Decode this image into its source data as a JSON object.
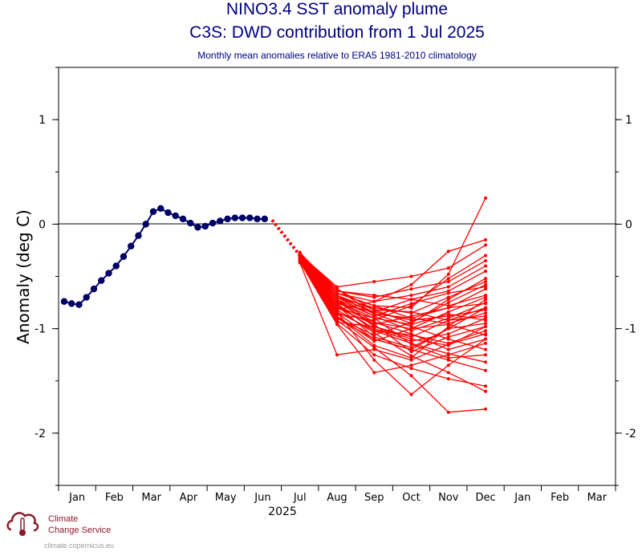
{
  "chart_data": {
    "type": "line",
    "title": "NINO3.4 SST anomaly plume",
    "subtitle": "C3S: DWD contribution from 1 Jul 2025",
    "caption": "Monthly mean anomalies relative to ERA5 1981-2010 climatology",
    "ylabel": "Anomaly (deg C)",
    "xlabel": "2025",
    "ylim": [
      -2.5,
      1.5
    ],
    "yticks": [
      1,
      0,
      -1,
      -2
    ],
    "ytick_labels": [
      "1",
      "0",
      "-1",
      "-2"
    ],
    "month_labels": [
      "Jan",
      "Feb",
      "Mar",
      "Apr",
      "May",
      "Jun",
      "Jul",
      "Aug",
      "Sep",
      "Oct",
      "Nov",
      "Dec",
      "Jan",
      "Feb",
      "Mar"
    ],
    "x_unit": "months since 1 Jan 2025",
    "xlim": [
      0,
      15
    ],
    "observed": {
      "color": "#000066",
      "x": [
        0.15,
        0.35,
        0.55,
        0.75,
        0.95,
        1.15,
        1.35,
        1.55,
        1.75,
        1.95,
        2.15,
        2.35,
        2.55,
        2.75,
        2.95,
        3.15,
        3.35,
        3.55,
        3.75,
        3.95,
        4.15,
        4.35,
        4.55,
        4.75,
        4.95,
        5.15,
        5.35,
        5.55
      ],
      "y": [
        -0.74,
        -0.76,
        -0.77,
        -0.7,
        -0.62,
        -0.54,
        -0.47,
        -0.4,
        -0.31,
        -0.21,
        -0.11,
        0.0,
        0.12,
        0.15,
        0.11,
        0.08,
        0.05,
        0.01,
        -0.03,
        -0.02,
        0.01,
        0.03,
        0.05,
        0.06,
        0.06,
        0.06,
        0.05,
        0.05
      ]
    },
    "transition": {
      "color": "#ff0000",
      "x": [
        5.75,
        6.5
      ],
      "y": [
        0.04,
        -0.3
      ]
    },
    "forecast": {
      "color": "#ff0000",
      "x": [
        6.5,
        7.5,
        8.5,
        9.5,
        10.5,
        11.5
      ],
      "members": [
        [
          -0.28,
          -0.62,
          -0.82,
          -0.95,
          -0.72,
          -0.52
        ],
        [
          -0.3,
          -0.7,
          -0.88,
          -1.02,
          -0.9,
          -0.75
        ],
        [
          -0.32,
          -0.78,
          -1.0,
          -1.12,
          -1.05,
          -0.9
        ],
        [
          -0.27,
          -0.66,
          -0.78,
          -0.8,
          -0.48,
          0.25
        ],
        [
          -0.34,
          -0.85,
          -1.1,
          -1.2,
          -1.3,
          -1.4
        ],
        [
          -0.36,
          -0.95,
          -1.25,
          -1.38,
          -1.48,
          -1.55
        ],
        [
          -0.31,
          -0.72,
          -0.94,
          -1.05,
          -1.2,
          -1.1
        ],
        [
          -0.29,
          -0.64,
          -0.7,
          -0.62,
          -0.55,
          -0.35
        ],
        [
          -0.33,
          -0.8,
          -0.96,
          -0.88,
          -0.8,
          -0.62
        ],
        [
          -0.35,
          -0.92,
          -1.18,
          -1.45,
          -1.8,
          -1.77
        ],
        [
          -0.3,
          -0.74,
          -0.9,
          -1.15,
          -1.28,
          -1.25
        ],
        [
          -0.28,
          -0.68,
          -0.86,
          -0.9,
          -0.95,
          -0.85
        ],
        [
          -0.32,
          -0.82,
          -1.04,
          -1.26,
          -1.42,
          -1.6
        ],
        [
          -0.34,
          -0.88,
          -1.12,
          -1.0,
          -0.84,
          -0.7
        ],
        [
          -0.37,
          -1.25,
          -1.2,
          -1.3,
          -1.15,
          -1.05
        ],
        [
          -0.29,
          -0.6,
          -0.55,
          -0.5,
          -0.42,
          -0.2
        ],
        [
          -0.31,
          -0.76,
          -0.84,
          -0.72,
          -0.64,
          -0.45
        ],
        [
          -0.33,
          -0.84,
          -1.3,
          -1.63,
          -1.35,
          -1.1
        ],
        [
          -0.3,
          -0.72,
          -0.98,
          -1.08,
          -0.92,
          -0.8
        ],
        [
          -0.35,
          -0.9,
          -1.06,
          -0.94,
          -0.75,
          -0.58
        ],
        [
          -0.28,
          -0.66,
          -0.74,
          -0.68,
          -0.6,
          -0.4
        ],
        [
          -0.32,
          -0.78,
          -1.08,
          -1.18,
          -1.0,
          -0.95
        ],
        [
          -0.36,
          -0.96,
          -1.42,
          -1.35,
          -1.25,
          -1.14
        ],
        [
          -0.3,
          -0.7,
          -0.8,
          -0.85,
          -0.7,
          -0.55
        ],
        [
          -0.33,
          -0.86,
          -0.92,
          -0.78,
          -0.52,
          -0.3
        ],
        [
          -0.29,
          -0.62,
          -0.86,
          -0.98,
          -1.1,
          -1.2
        ],
        [
          -0.31,
          -0.74,
          -0.96,
          -1.22,
          -1.08,
          -0.98
        ],
        [
          -0.34,
          -0.82,
          -0.74,
          -0.58,
          -0.26,
          -0.15
        ],
        [
          -0.3,
          -0.68,
          -0.82,
          -0.84,
          -0.92,
          -0.88
        ],
        [
          -0.32,
          -0.76,
          -1.02,
          -1.14,
          -1.24,
          -1.32
        ],
        [
          -0.35,
          -0.88,
          -1.16,
          -1.28,
          -0.98,
          -0.72
        ],
        [
          -0.28,
          -0.64,
          -0.68,
          -0.72,
          -0.78,
          -0.68
        ],
        [
          -0.31,
          -0.8,
          -0.9,
          -0.96,
          -0.86,
          -0.92
        ],
        [
          -0.33,
          -0.84,
          -1.02,
          -1.06,
          -1.14,
          -1.02
        ],
        [
          -0.3,
          -0.72,
          -0.88,
          -0.76,
          -0.66,
          -0.6
        ],
        [
          -0.34,
          -0.9,
          -1.1,
          -1.2,
          -1.0,
          -0.8
        ],
        [
          -0.29,
          -0.66,
          -0.78,
          -0.9,
          -0.8,
          -0.76
        ],
        [
          -0.32,
          -0.78,
          -0.94,
          -1.0,
          -0.96,
          -1.06
        ],
        [
          -0.36,
          -0.94,
          -0.98,
          -1.1,
          -1.16,
          -0.98
        ],
        [
          -0.3,
          -0.7,
          -0.84,
          -0.92,
          -0.88,
          -0.82
        ]
      ]
    }
  },
  "logo": {
    "line1": "Climate",
    "line2": "Change Service",
    "url": "climate.copernicus.eu",
    "accent": "#8b1a2b"
  }
}
